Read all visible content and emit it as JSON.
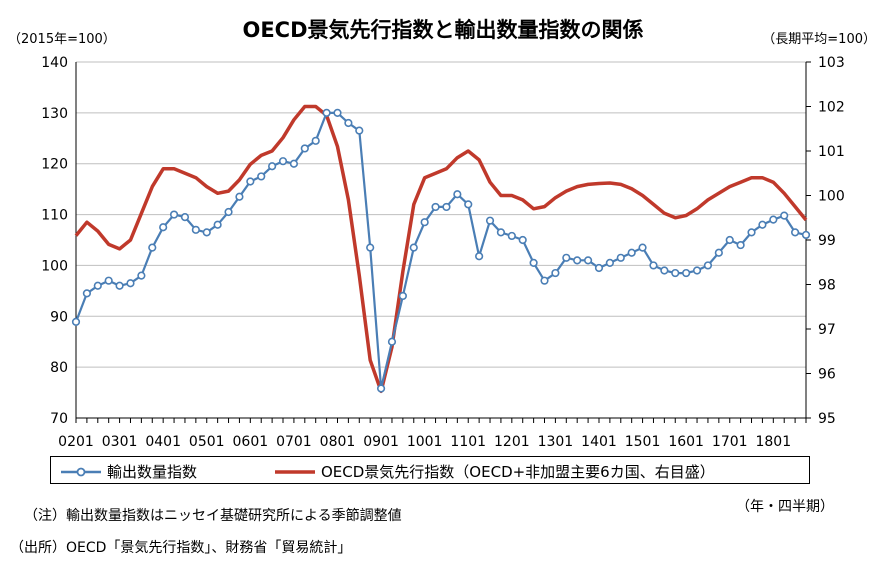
{
  "chart_data": {
    "type": "line",
    "title": "OECD景気先行指数と輸出数量指数の関係",
    "left_axis_unit": "（2015年=100）",
    "right_axis_unit": "（長期平均=100）",
    "x_unit": "（年・四半期）",
    "left_ylim": [
      70,
      140
    ],
    "left_yticks": [
      "70",
      "80",
      "90",
      "100",
      "110",
      "120",
      "130",
      "140"
    ],
    "right_ylim": [
      95,
      103
    ],
    "right_yticks": [
      "95",
      "96",
      "97",
      "98",
      "99",
      "100",
      "101",
      "102",
      "103"
    ],
    "xticks": [
      "0201",
      "0301",
      "0401",
      "0501",
      "0601",
      "0701",
      "0801",
      "0901",
      "1001",
      "1101",
      "1201",
      "1301",
      "1401",
      "1501",
      "1601",
      "1701",
      "1801"
    ],
    "grid": true,
    "periods_start": "2002Q1",
    "series": [
      {
        "name": "輸出数量指数",
        "axis": "left",
        "color": "#4a7eb5",
        "marker": "circle",
        "values": [
          88.9,
          94.5,
          96.0,
          97.0,
          96.0,
          96.5,
          98.0,
          103.5,
          107.5,
          110.0,
          109.5,
          107.0,
          106.5,
          108.0,
          110.5,
          113.5,
          116.5,
          117.5,
          119.5,
          120.5,
          120.0,
          123.0,
          124.5,
          130.0,
          130.0,
          128.0,
          126.5,
          103.5,
          75.8,
          85.0,
          94.0,
          103.5,
          108.5,
          111.5,
          111.5,
          114.0,
          112.0,
          101.8,
          108.8,
          106.5,
          105.8,
          105.0,
          100.5,
          97.0,
          98.5,
          101.5,
          101.0,
          101.0,
          99.5,
          100.5,
          101.5,
          102.5,
          103.5,
          100.0,
          99.0,
          98.5,
          98.5,
          99.0,
          100.0,
          102.5,
          105.0,
          104.0,
          106.5,
          108.0,
          109.0,
          109.8,
          106.5,
          106.0
        ]
      },
      {
        "name": "OECD景気先行指数（OECD+非加盟主要6カ国、右目盛）",
        "axis": "right",
        "color": "#c0392b",
        "values": [
          99.1,
          99.4,
          99.2,
          98.9,
          98.8,
          99.0,
          99.6,
          100.2,
          100.6,
          100.6,
          100.5,
          100.4,
          100.2,
          100.05,
          100.1,
          100.35,
          100.7,
          100.9,
          101.0,
          101.3,
          101.7,
          102.0,
          102.0,
          101.8,
          101.1,
          99.9,
          98.2,
          96.3,
          95.6,
          96.6,
          98.3,
          99.8,
          100.4,
          100.5,
          100.6,
          100.85,
          101.0,
          100.8,
          100.3,
          100.0,
          100.0,
          99.9,
          99.7,
          99.75,
          99.95,
          100.1,
          100.2,
          100.25,
          100.27,
          100.28,
          100.25,
          100.15,
          100.0,
          99.8,
          99.6,
          99.5,
          99.55,
          99.7,
          99.9,
          100.05,
          100.2,
          100.3,
          100.4,
          100.4,
          100.3,
          100.05,
          99.75,
          99.45
        ]
      }
    ]
  },
  "notes": {
    "note": "（注）輸出数量指数はニッセイ基礎研究所による季節調整値",
    "source": "（出所）OECD「景気先行指数」、財務省「貿易統計」"
  },
  "colors": {
    "export_line": "#4a7eb5",
    "cli_line": "#c0392b",
    "grid": "#bfbfbf"
  }
}
